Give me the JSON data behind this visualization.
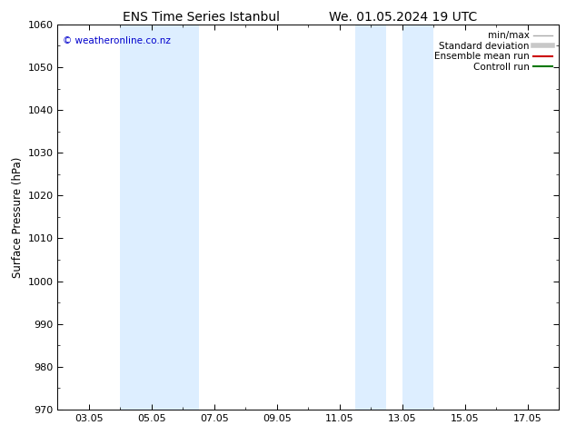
{
  "title_left": "ENS Time Series Istanbul",
  "title_right": "We. 01.05.2024 19 UTC",
  "ylabel": "Surface Pressure (hPa)",
  "ylim": [
    970,
    1060
  ],
  "yticks": [
    970,
    980,
    990,
    1000,
    1010,
    1020,
    1030,
    1040,
    1050,
    1060
  ],
  "xtick_labels": [
    "03.05",
    "05.05",
    "07.05",
    "09.05",
    "11.05",
    "13.05",
    "15.05",
    "17.05"
  ],
  "xtick_positions": [
    2,
    4,
    6,
    8,
    10,
    12,
    14,
    16
  ],
  "xlim": [
    1,
    17
  ],
  "shaded_regions": [
    {
      "x_start": 3.0,
      "x_end": 5.5,
      "color": "#ddeeff"
    },
    {
      "x_start": 10.5,
      "x_end": 11.5,
      "color": "#ddeeff"
    },
    {
      "x_start": 12.0,
      "x_end": 13.0,
      "color": "#ddeeff"
    }
  ],
  "watermark": "© weatheronline.co.nz",
  "watermark_color": "#0000cc",
  "background_color": "#ffffff",
  "legend_entries": [
    {
      "label": "min/max",
      "color": "#aaaaaa",
      "linestyle": "-",
      "linewidth": 1.0
    },
    {
      "label": "Standard deviation",
      "color": "#c8c8c8",
      "linestyle": "-",
      "linewidth": 4.0
    },
    {
      "label": "Ensemble mean run",
      "color": "#cc0000",
      "linestyle": "-",
      "linewidth": 1.5
    },
    {
      "label": "Controll run",
      "color": "#007700",
      "linestyle": "-",
      "linewidth": 1.5
    }
  ],
  "tick_direction": "in",
  "title_fontsize": 10,
  "axis_fontsize": 8,
  "legend_fontsize": 7.5
}
